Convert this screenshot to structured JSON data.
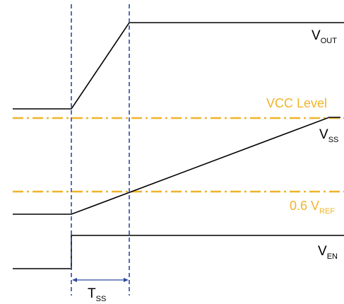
{
  "signals": {
    "vout": {
      "main": "V",
      "sub": "OUT"
    },
    "vss": {
      "main": "V",
      "sub": "SS"
    },
    "ven": {
      "main": "V",
      "sub": "EN"
    }
  },
  "levels": {
    "vcc": {
      "label": "VCC Level"
    },
    "vref": {
      "main": "0.6 V",
      "sub": "REF"
    }
  },
  "interval": {
    "main": "T",
    "sub": "SS"
  },
  "colors": {
    "signal": "#000000",
    "level": "#f0b429",
    "marker": "#2e4a9e"
  }
}
